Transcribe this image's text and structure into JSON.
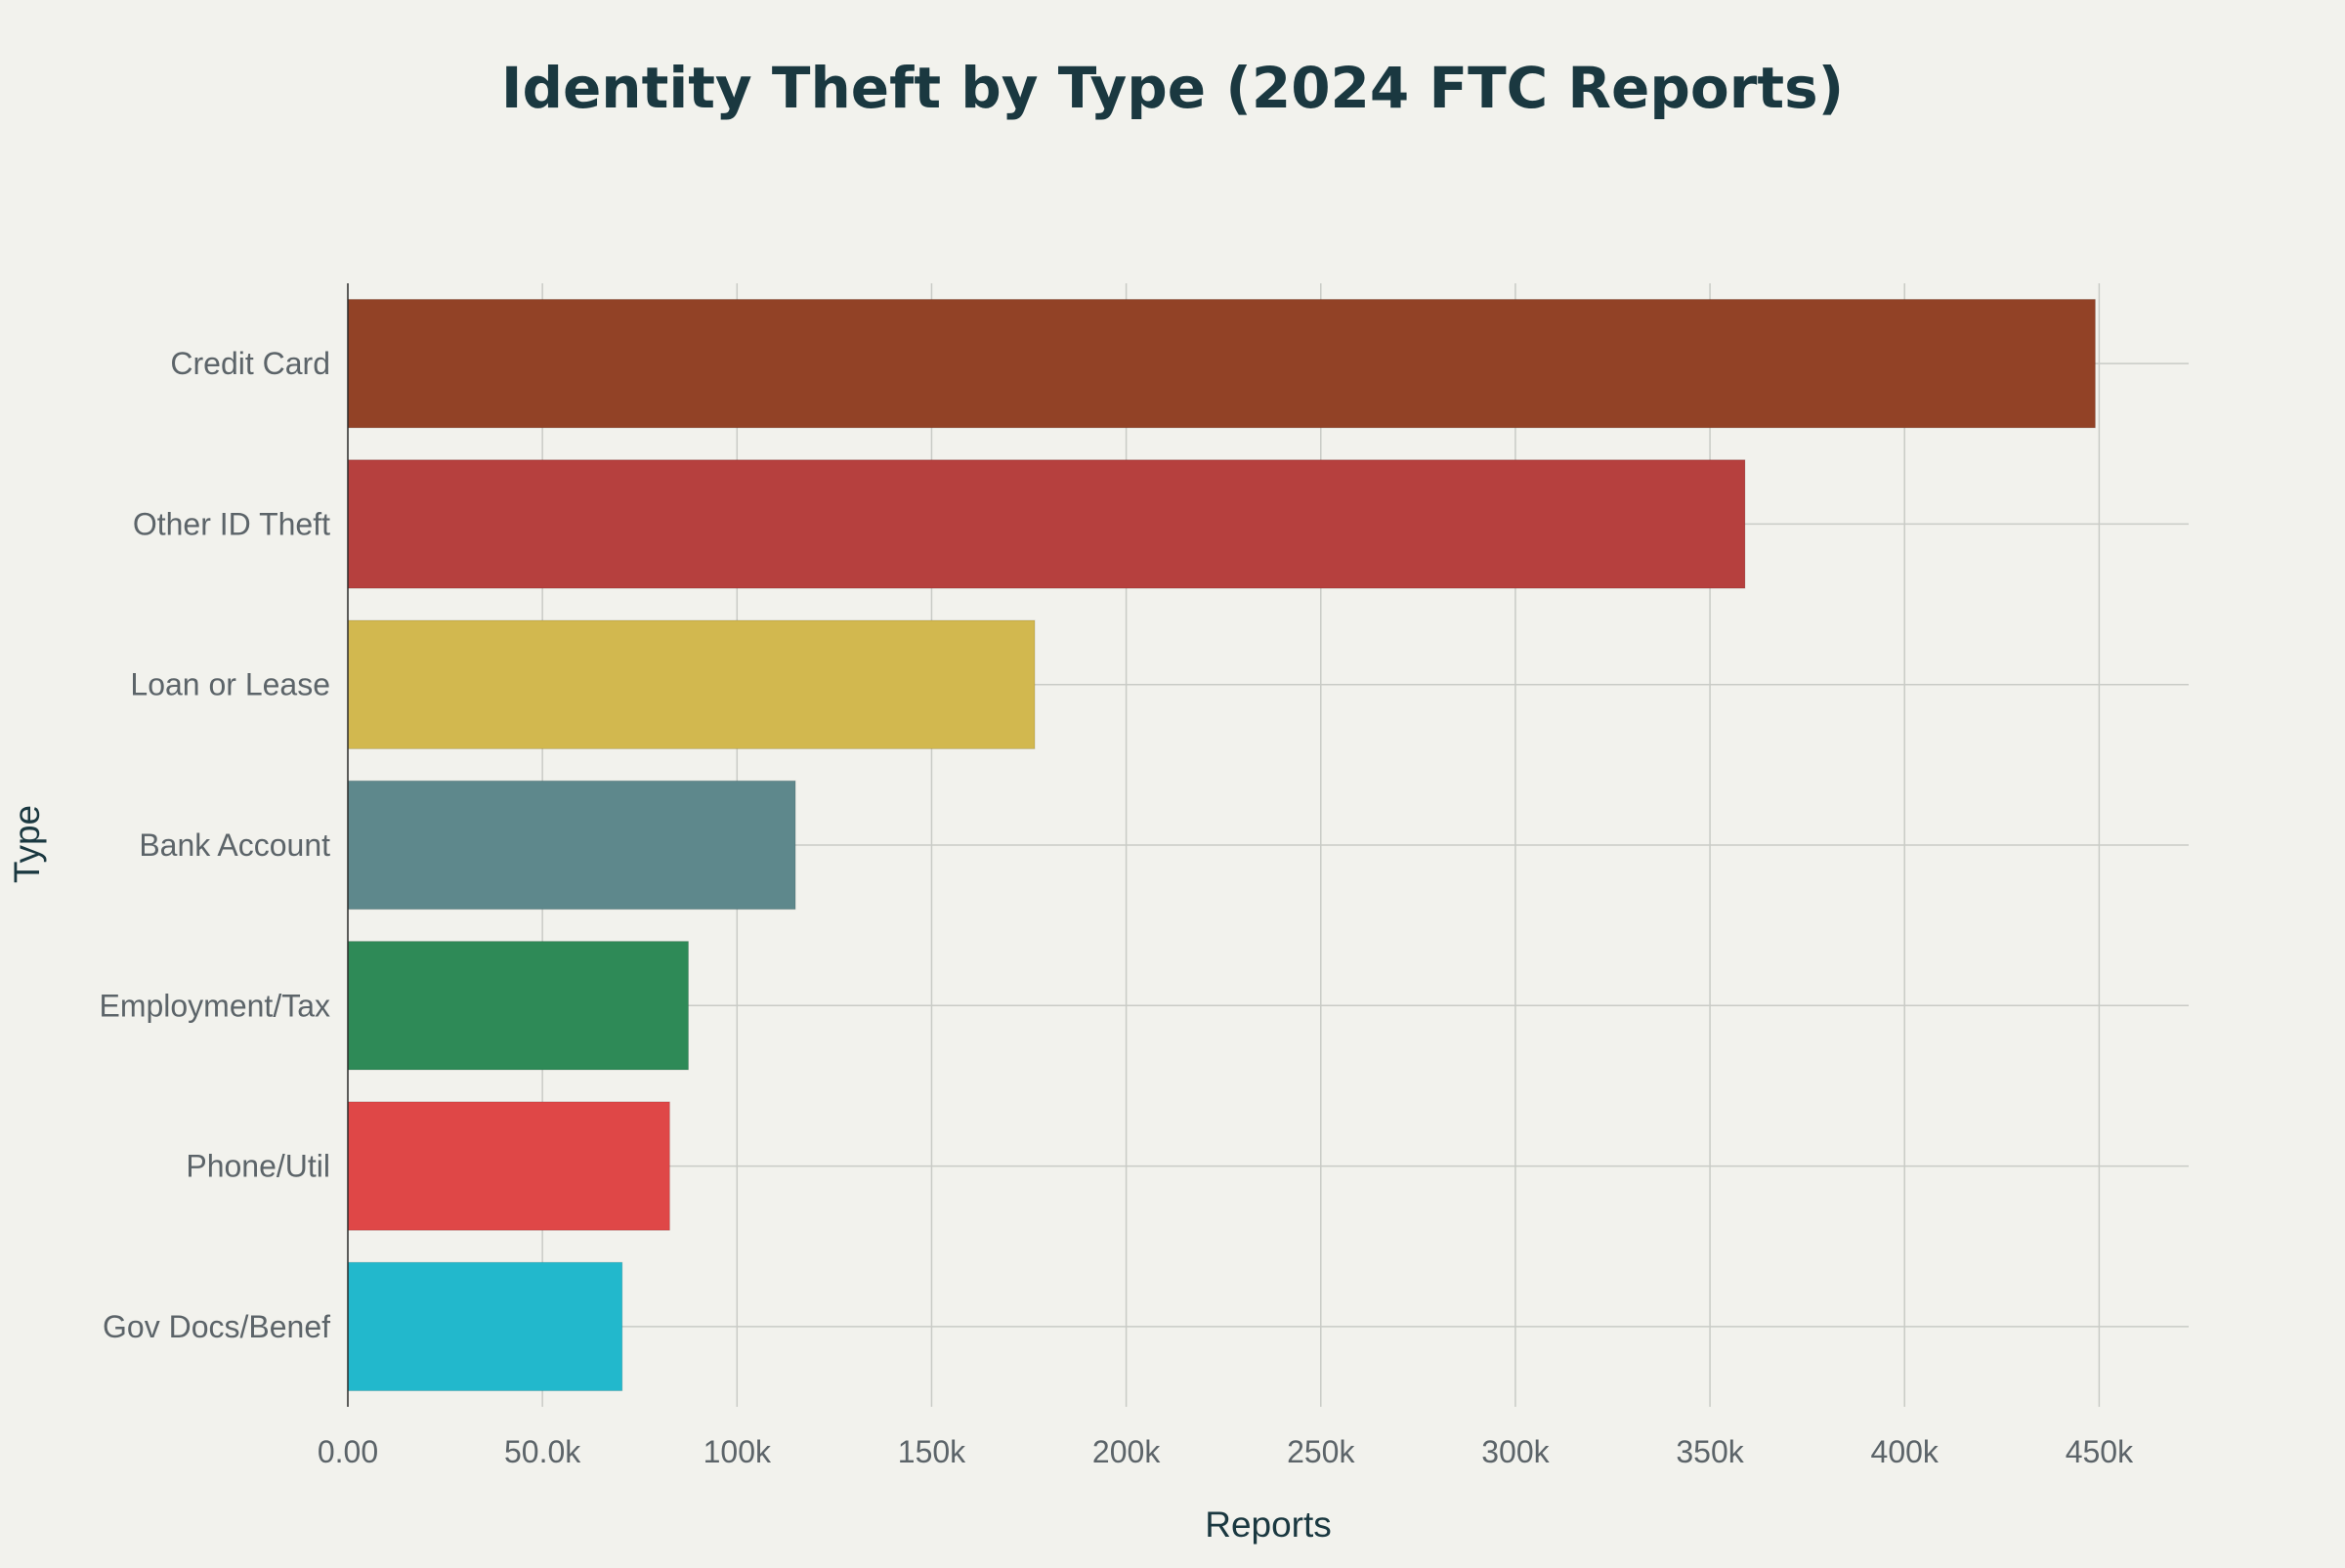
{
  "chart_data": {
    "type": "bar",
    "orientation": "horizontal",
    "title": "Identity Theft by Type (2024 FTC Reports)",
    "xlabel": "Reports",
    "ylabel": "Type",
    "categories": [
      "Credit Card",
      "Other ID Theft",
      "Loan or Lease",
      "Bank Account",
      "Employment/Tax",
      "Phone/Util",
      "Gov Docs/Benef"
    ],
    "values": [
      449000,
      359000,
      176500,
      115000,
      87500,
      82700,
      70500
    ],
    "colors": [
      "#924226",
      "#b6403e",
      "#d2b84f",
      "#5e888c",
      "#2e8a57",
      "#df4747",
      "#22b8cc"
    ],
    "xlim": [
      0,
      473000
    ],
    "xticks": [
      0,
      50000,
      100000,
      150000,
      200000,
      250000,
      300000,
      350000,
      400000,
      450000
    ],
    "xtick_labels": [
      "0.00",
      "50.0k",
      "100k",
      "150k",
      "200k",
      "250k",
      "300k",
      "350k",
      "400k",
      "450k"
    ],
    "grid": true,
    "legend": "none"
  }
}
